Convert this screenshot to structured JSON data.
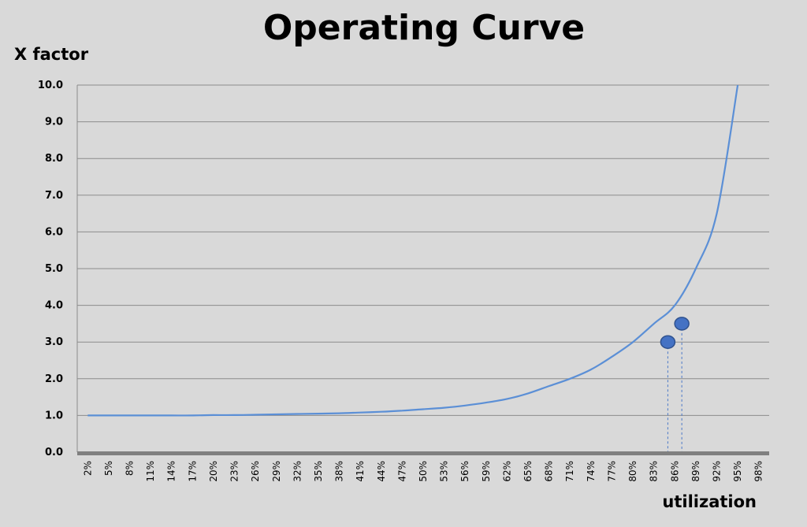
{
  "chart_data": {
    "type": "line",
    "title": "Operating Curve",
    "ylabel": "X factor",
    "xlabel": "utilization",
    "ylim": [
      0,
      10
    ],
    "y_ticks": [
      "0.0",
      "1.0",
      "2.0",
      "3.0",
      "4.0",
      "5.0",
      "6.0",
      "7.0",
      "8.0",
      "9.0",
      "10.0"
    ],
    "x_ticks": [
      "2%",
      "5%",
      "8%",
      "11%",
      "14%",
      "17%",
      "20%",
      "23%",
      "26%",
      "29%",
      "32%",
      "35%",
      "38%",
      "41%",
      "44%",
      "47%",
      "50%",
      "53%",
      "56%",
      "59%",
      "62%",
      "65%",
      "68%",
      "71%",
      "74%",
      "77%",
      "80%",
      "83%",
      "86%",
      "89%",
      "92%",
      "95%",
      "98%"
    ],
    "xlim": [
      0.02,
      0.98
    ],
    "grid": true,
    "series": [
      {
        "color": "#5b8fd6",
        "x": [
          0.02,
          0.05,
          0.08,
          0.11,
          0.14,
          0.17,
          0.2,
          0.23,
          0.26,
          0.29,
          0.32,
          0.35,
          0.38,
          0.41,
          0.44,
          0.47,
          0.5,
          0.53,
          0.56,
          0.59,
          0.62,
          0.65,
          0.68,
          0.71,
          0.74,
          0.77,
          0.8,
          0.83,
          0.86,
          0.89,
          0.92,
          0.95
        ],
        "y": [
          1.0,
          1.0,
          1.0,
          1.0,
          1.0,
          1.0,
          1.01,
          1.01,
          1.02,
          1.03,
          1.04,
          1.05,
          1.06,
          1.08,
          1.1,
          1.13,
          1.17,
          1.21,
          1.27,
          1.35,
          1.45,
          1.6,
          1.8,
          2.0,
          2.25,
          2.6,
          3.0,
          3.5,
          4.0,
          5.0,
          6.5,
          10.0
        ]
      }
    ],
    "highlight_points": [
      {
        "x": 0.85,
        "y": 3.0,
        "color": "#4472c4"
      },
      {
        "x": 0.87,
        "y": 3.5,
        "color": "#4472c4"
      }
    ]
  }
}
